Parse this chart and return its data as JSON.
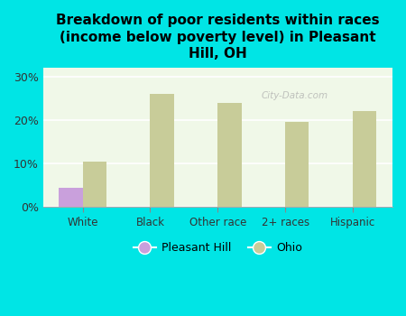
{
  "title": "Breakdown of poor residents within races\n(income below poverty level) in Pleasant\nHill, OH",
  "categories": [
    "White",
    "Black",
    "Other race",
    "2+ races",
    "Hispanic"
  ],
  "pleasant_hill_values": [
    4.5,
    0,
    0,
    0,
    0
  ],
  "ohio_values": [
    10.5,
    26.0,
    24.0,
    19.5,
    22.0
  ],
  "pleasant_hill_color": "#c9a0dc",
  "ohio_color": "#c8cc99",
  "background_color": "#00e5e5",
  "chart_bg_color": "#f0f8e8",
  "yticks": [
    0,
    10,
    20,
    30
  ],
  "ylim": [
    0,
    32
  ],
  "bar_width": 0.35,
  "title_fontsize": 11,
  "watermark": "City-Data.com"
}
